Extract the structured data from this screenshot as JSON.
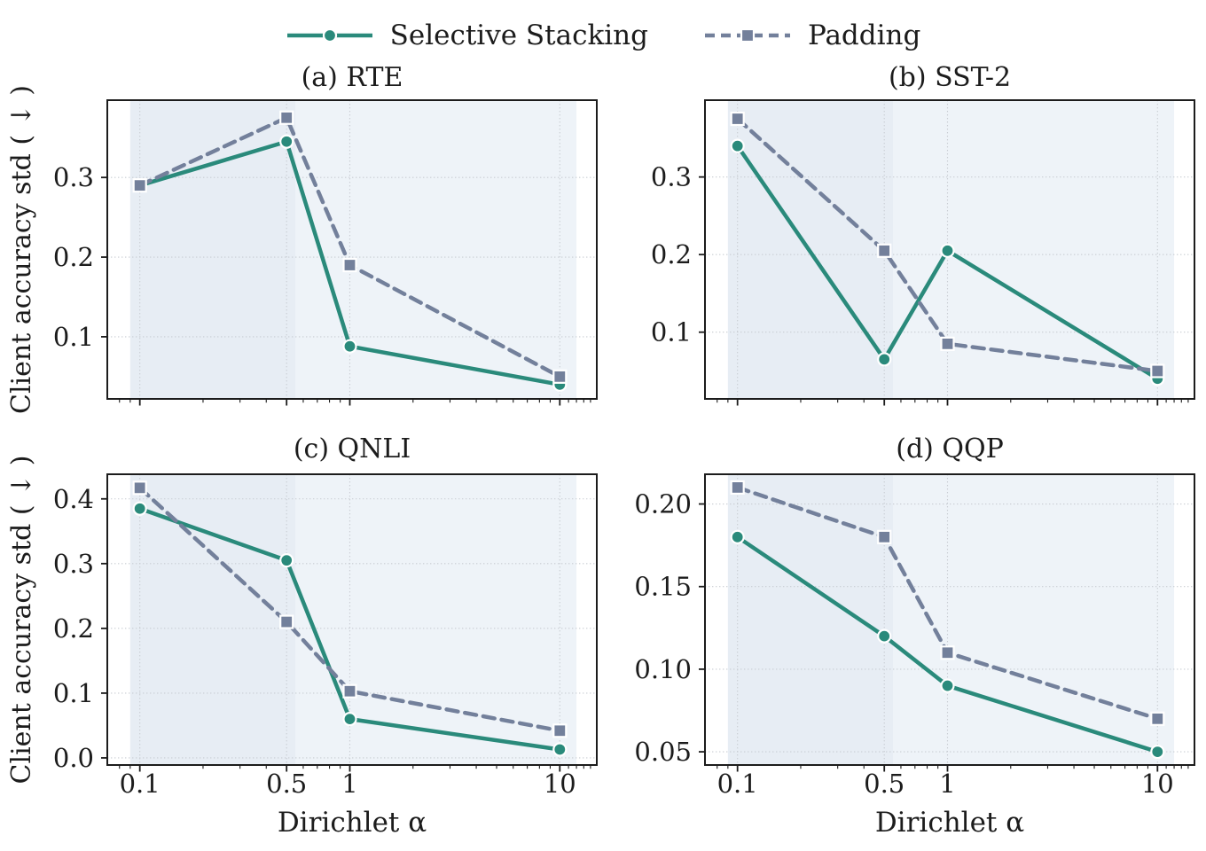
{
  "figure": {
    "ylabel": "Client accuracy std ( ↓ )",
    "xlabel": "Dirichlet α"
  },
  "legend": {
    "position": "top-center",
    "items": [
      {
        "label": "Selective Stacking",
        "color": "#2A8A7B",
        "marker": "circle",
        "line_style": "solid"
      },
      {
        "label": "Padding",
        "color": "#73809B",
        "marker": "square",
        "line_style": "dashed"
      }
    ]
  },
  "style": {
    "background": "#FFFFFF",
    "text_color": "#1C1C1C",
    "frame_color": "#1C1C1C",
    "grid_color": "#C9CDD3",
    "marker_edge_color": "#FFFFFF",
    "band_colors": [
      "#E7EDF4",
      "#EEF3F8"
    ]
  },
  "axes_shared": {
    "xscale": "log",
    "xlim": [
      0.07,
      15
    ],
    "xticks": [
      0.1,
      0.5,
      1,
      10
    ],
    "xtick_labels": [
      "0.1",
      "0.5",
      "1",
      "10"
    ],
    "x_minor_ticks": [
      0.08,
      0.09,
      0.2,
      0.3,
      0.4,
      0.6,
      0.7,
      0.8,
      0.9,
      2,
      3,
      4,
      5,
      6,
      7,
      8,
      9,
      11,
      12,
      13,
      14
    ],
    "grid": "dotted",
    "shaded_bands": [
      {
        "span": [
          0.09,
          0.55
        ]
      },
      {
        "span": [
          0.55,
          12
        ]
      }
    ]
  },
  "chart_data": [
    {
      "type": "line",
      "panel": "a",
      "title": "(a) RTE",
      "x": [
        0.1,
        0.5,
        1,
        10
      ],
      "series": [
        {
          "name": "Selective Stacking",
          "values": [
            0.29,
            0.345,
            0.088,
            0.04
          ]
        },
        {
          "name": "Padding",
          "values": [
            0.29,
            0.375,
            0.19,
            0.05
          ]
        }
      ],
      "ylim": [
        0.022,
        0.397
      ],
      "yticks": [
        0.1,
        0.2,
        0.3
      ],
      "ytick_labels": [
        "0.1",
        "0.2",
        "0.3"
      ],
      "show_xticklabels": false,
      "show_xlabel": false,
      "show_ylabel": true
    },
    {
      "type": "line",
      "panel": "b",
      "title": "(b) SST-2",
      "x": [
        0.1,
        0.5,
        1,
        10
      ],
      "series": [
        {
          "name": "Selective Stacking",
          "values": [
            0.34,
            0.065,
            0.205,
            0.04
          ]
        },
        {
          "name": "Padding",
          "values": [
            0.375,
            0.205,
            0.085,
            0.05
          ]
        }
      ],
      "ylim": [
        0.014,
        0.399
      ],
      "yticks": [
        0.1,
        0.2,
        0.3
      ],
      "ytick_labels": [
        "0.1",
        "0.2",
        "0.3"
      ],
      "show_xticklabels": false,
      "show_xlabel": false,
      "show_ylabel": false
    },
    {
      "type": "line",
      "panel": "c",
      "title": "(c) QNLI",
      "x": [
        0.1,
        0.5,
        1,
        10
      ],
      "series": [
        {
          "name": "Selective Stacking",
          "values": [
            0.385,
            0.305,
            0.06,
            0.013
          ]
        },
        {
          "name": "Padding",
          "values": [
            0.417,
            0.21,
            0.103,
            0.042
          ]
        }
      ],
      "ylim": [
        -0.011,
        0.438
      ],
      "yticks": [
        0.0,
        0.1,
        0.2,
        0.3,
        0.4
      ],
      "ytick_labels": [
        "0.0",
        "0.1",
        "0.2",
        "0.3",
        "0.4"
      ],
      "show_xticklabels": true,
      "show_xlabel": true,
      "show_ylabel": true
    },
    {
      "type": "line",
      "panel": "d",
      "title": "(d) QQP",
      "x": [
        0.1,
        0.5,
        1,
        10
      ],
      "series": [
        {
          "name": "Selective Stacking",
          "values": [
            0.18,
            0.12,
            0.09,
            0.05
          ]
        },
        {
          "name": "Padding",
          "values": [
            0.21,
            0.18,
            0.11,
            0.07
          ]
        }
      ],
      "ylim": [
        0.042,
        0.218
      ],
      "yticks": [
        0.05,
        0.1,
        0.15,
        0.2
      ],
      "ytick_labels": [
        "0.05",
        "0.10",
        "0.15",
        "0.20"
      ],
      "show_xticklabels": true,
      "show_xlabel": true,
      "show_ylabel": false
    }
  ]
}
